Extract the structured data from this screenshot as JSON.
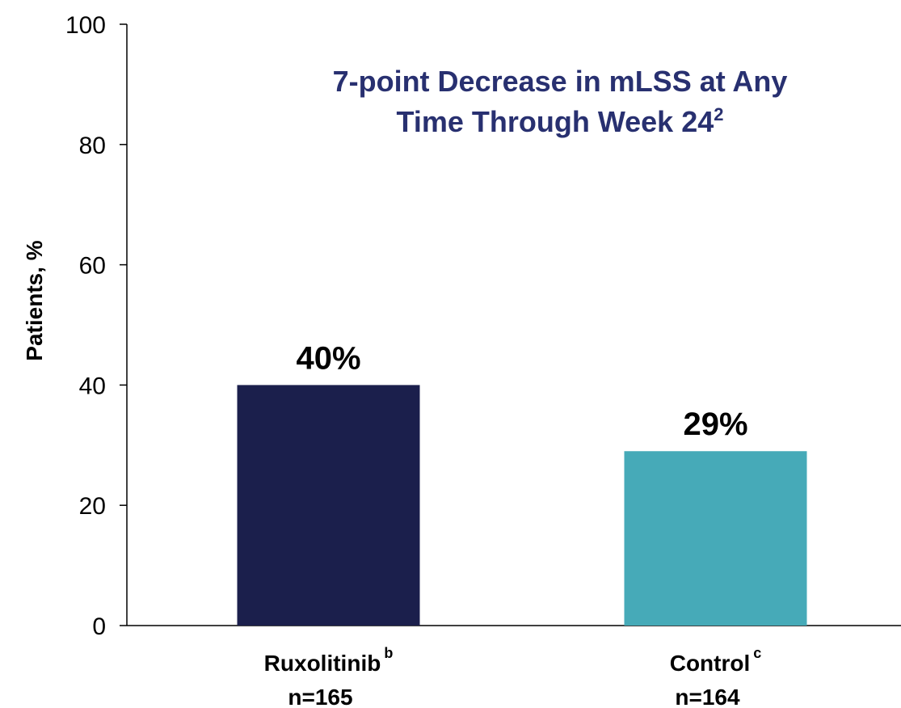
{
  "chart_data": {
    "type": "bar",
    "title_lines": [
      "7-point Decrease in mLSS at Any",
      "Time Through Week 24"
    ],
    "title_superscript": "2",
    "y_label": "Patients, %",
    "categories": [
      "Ruxolitinib",
      "Control"
    ],
    "category_superscripts": [
      "b",
      "c"
    ],
    "category_counts": [
      "n=165",
      "n=164"
    ],
    "values": [
      40,
      29
    ],
    "value_labels": [
      "40%",
      "29%"
    ],
    "colors": [
      "#1b1f4c",
      "#46aab8"
    ],
    "ylim": [
      0,
      100
    ],
    "yticks": [
      0,
      20,
      40,
      60,
      80,
      100
    ],
    "grid": false
  }
}
